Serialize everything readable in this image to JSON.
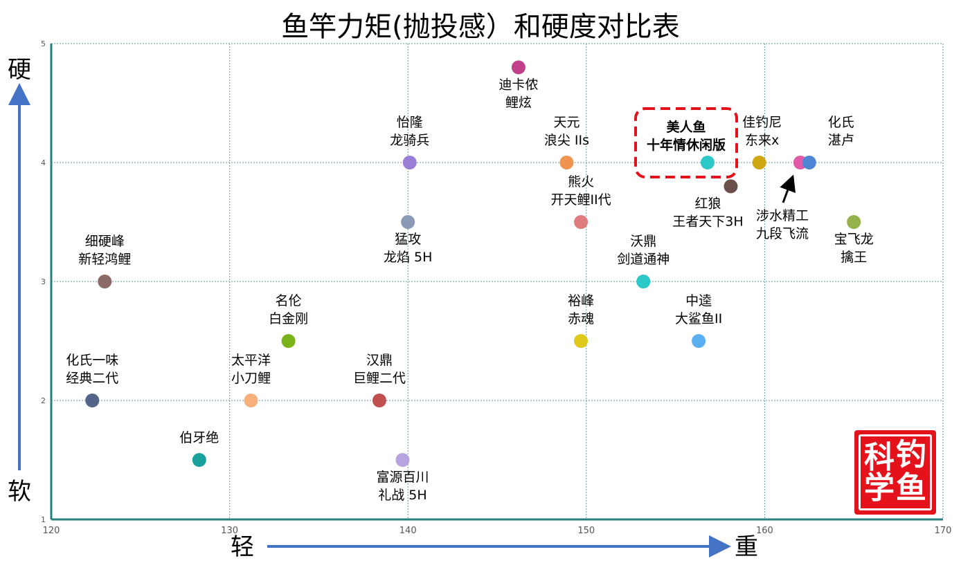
{
  "chart_data": {
    "type": "scatter",
    "title": "鱼竿力矩(抛投感）和硬度对比表",
    "xlabel_left": "轻",
    "xlabel_right": "重",
    "ylabel_top": "硬",
    "ylabel_bottom": "软",
    "xlim": [
      120,
      170
    ],
    "ylim": [
      1,
      5
    ],
    "xticks": [
      "120",
      "130",
      "140",
      "150",
      "160",
      "170"
    ],
    "yticks": [
      "1",
      "2",
      "3",
      "4",
      "5"
    ],
    "grid": true,
    "points": [
      {
        "x": 146.2,
        "y": 4.8,
        "label": [
          "迪卡侬",
          "鲤炫"
        ],
        "color": "#c23f8a",
        "pos": "below"
      },
      {
        "x": 140.1,
        "y": 4.0,
        "label": [
          "怡隆",
          "龙骑兵"
        ],
        "color": "#9a7ed6",
        "pos": "above"
      },
      {
        "x": 148.9,
        "y": 4.0,
        "label": [
          "天元",
          "浪尖 IIs"
        ],
        "color": "#ef9450",
        "pos": "above"
      },
      {
        "x": 156.8,
        "y": 4.0,
        "label": [
          "美人鱼",
          "十年情休闲版"
        ],
        "color": "#2cc8c8",
        "pos": "above",
        "highlight": true
      },
      {
        "x": 159.7,
        "y": 4.0,
        "label": [
          "佳钓尼",
          "东来x"
        ],
        "color": "#cfa713",
        "pos": "above"
      },
      {
        "x": 162.0,
        "y": 4.0,
        "label": [],
        "color": "#e05aa8",
        "pos": "none"
      },
      {
        "x": 162.5,
        "y": 4.0,
        "label": [
          "化氏",
          "湛卢"
        ],
        "color": "#4f86d4",
        "pos": "above"
      },
      {
        "x": 158.1,
        "y": 3.8,
        "label": [
          "红狼",
          "王者天下3H"
        ],
        "color": "#6b4f4a",
        "pos": "below"
      },
      {
        "x": 161.0,
        "y": 3.6,
        "label": [
          "涉水精工",
          "九段飞流"
        ],
        "color": "none",
        "pos": "label"
      },
      {
        "x": 149.7,
        "y": 3.5,
        "label": [
          "熊火",
          "开天鲤II代"
        ],
        "color": "#dd7b7f",
        "pos": "above"
      },
      {
        "x": 140.0,
        "y": 3.5,
        "label": [
          "猛攻",
          "龙焰 5H"
        ],
        "color": "#8a99b6",
        "pos": "below"
      },
      {
        "x": 165.0,
        "y": 3.5,
        "label": [
          "宝飞龙",
          "擒王"
        ],
        "color": "#93b24a",
        "pos": "below"
      },
      {
        "x": 123.0,
        "y": 3.0,
        "label": [
          "细硬峰",
          "新轻鸿鲤"
        ],
        "color": "#8b6a68",
        "pos": "above"
      },
      {
        "x": 153.2,
        "y": 3.0,
        "label": [
          "沃鼎",
          "剑道通神"
        ],
        "color": "#2cc8c8",
        "pos": "above"
      },
      {
        "x": 133.3,
        "y": 2.5,
        "label": [
          "名伦",
          "白金刚"
        ],
        "color": "#7ab317",
        "pos": "above"
      },
      {
        "x": 149.7,
        "y": 2.5,
        "label": [
          "裕峰",
          "赤魂"
        ],
        "color": "#e0c81a",
        "pos": "above"
      },
      {
        "x": 156.3,
        "y": 2.5,
        "label": [
          "中逵",
          "大鲨鱼II"
        ],
        "color": "#5aaff0",
        "pos": "above"
      },
      {
        "x": 122.3,
        "y": 2.0,
        "label": [
          "化氏一味",
          "经典二代"
        ],
        "color": "#526488",
        "pos": "above"
      },
      {
        "x": 131.2,
        "y": 2.0,
        "label": [
          "太平洋",
          "小刀鲤"
        ],
        "color": "#f8b07a",
        "pos": "above"
      },
      {
        "x": 138.4,
        "y": 2.0,
        "label": [
          "汉鼎",
          "巨鲤二代"
        ],
        "color": "#c0504d",
        "pos": "above"
      },
      {
        "x": 128.3,
        "y": 1.5,
        "label": [
          "伯牙绝"
        ],
        "color": "#1aa09a",
        "pos": "above"
      },
      {
        "x": 139.7,
        "y": 1.5,
        "label": [
          "富源百川",
          "礼战 5H"
        ],
        "color": "#b7a3df",
        "pos": "below"
      }
    ]
  },
  "seal": {
    "chars": [
      "科",
      "钓",
      "学",
      "鱼"
    ]
  },
  "colors": {
    "axis": "#2a7f7f",
    "grid": "#5a9a9a",
    "arrow": "#4472c4",
    "highlight": "#e3121b"
  }
}
